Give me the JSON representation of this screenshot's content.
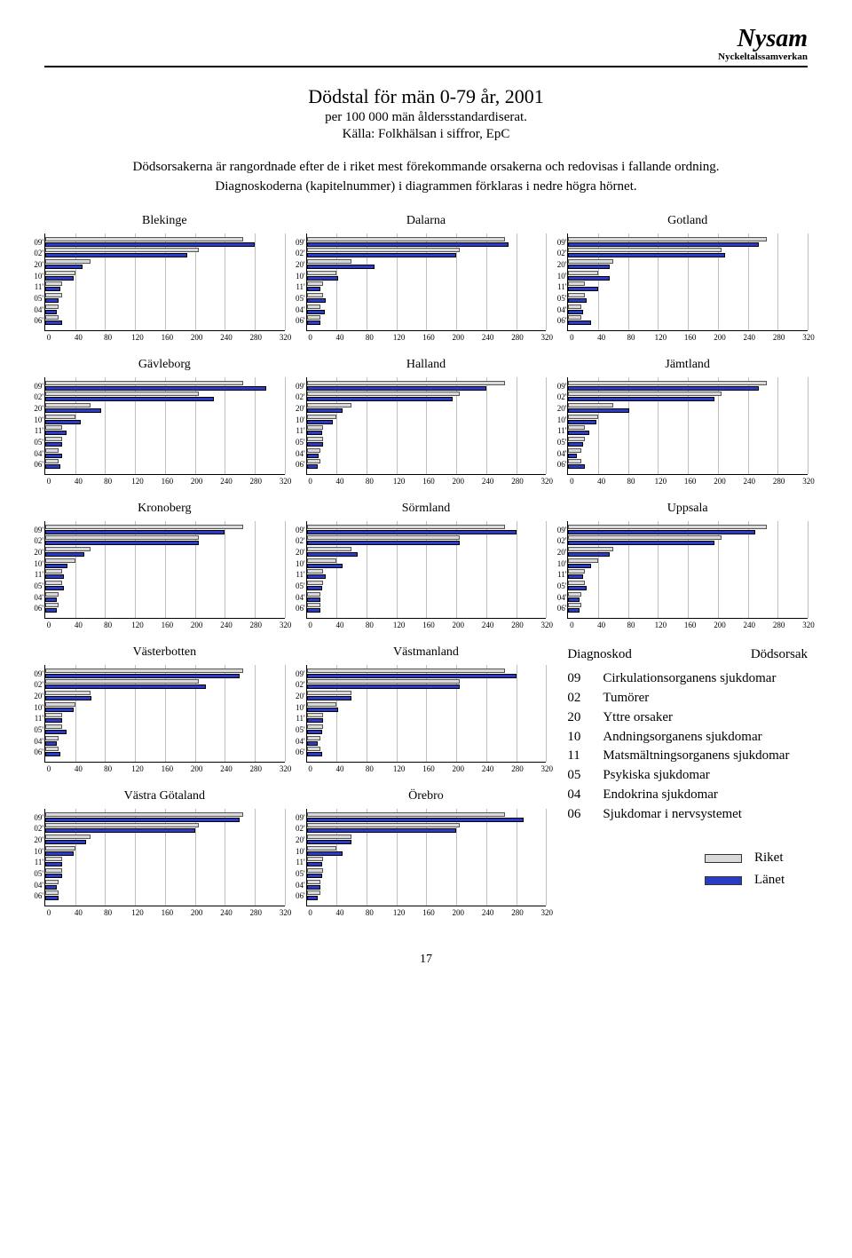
{
  "brand": {
    "title": "Nysam",
    "subtitle": "Nyckeltalssamverkan"
  },
  "title": "Dödstal för män 0-79 år, 2001",
  "subtitle": "per 100 000 män åldersstandardiserat.",
  "source": "Källa: Folkhälsan i siffror, EpC",
  "description1": "Dödsorsakerna är rangordnade efter de i riket mest förekommande orsakerna och redovisas i fallande ordning.",
  "description2": "Diagnoskoderna (kapitelnummer) i diagrammen förklaras i nedre högra hörnet.",
  "axis": {
    "xmin": 0,
    "xmax": 320,
    "ticks": [
      0,
      40,
      80,
      120,
      160,
      200,
      240,
      280,
      320
    ],
    "grid_color": "#bfbfbf"
  },
  "categories": [
    "09'",
    "02'",
    "20'",
    "10'",
    "11'",
    "05'",
    "04'",
    "06'"
  ],
  "colors": {
    "riket": "#d9d9d9",
    "lanet": "#2a3cc4",
    "riket_border": "#555555",
    "lanet_border": "#000000",
    "background": "#ffffff",
    "axis": "#000000"
  },
  "riket_values": [
    265,
    205,
    60,
    40,
    22,
    22,
    18,
    18
  ],
  "charts": [
    {
      "title": "Blekinge",
      "lanet": [
        280,
        190,
        50,
        38,
        20,
        18,
        15,
        22
      ]
    },
    {
      "title": "Dalarna",
      "lanet": [
        270,
        200,
        90,
        42,
        18,
        25,
        24,
        18
      ]
    },
    {
      "title": "Gotland",
      "lanet": [
        255,
        210,
        55,
        55,
        40,
        25,
        20,
        30
      ]
    },
    {
      "title": "Gävleborg",
      "lanet": [
        295,
        225,
        75,
        48,
        28,
        22,
        22,
        20
      ]
    },
    {
      "title": "Halland",
      "lanet": [
        240,
        195,
        48,
        35,
        20,
        22,
        16,
        15
      ]
    },
    {
      "title": "Jämtland",
      "lanet": [
        255,
        195,
        82,
        38,
        28,
        20,
        12,
        22
      ]
    },
    {
      "title": "Kronoberg",
      "lanet": [
        240,
        205,
        52,
        30,
        25,
        25,
        15,
        15
      ]
    },
    {
      "title": "Sörmland",
      "lanet": [
        280,
        205,
        68,
        48,
        25,
        20,
        18,
        18
      ]
    },
    {
      "title": "Uppsala",
      "lanet": [
        250,
        195,
        55,
        30,
        20,
        25,
        15,
        15
      ]
    },
    {
      "title": "Västerbotten",
      "lanet": [
        260,
        215,
        62,
        38,
        22,
        28,
        15,
        20
      ]
    },
    {
      "title": "Västmanland",
      "lanet": [
        280,
        205,
        60,
        42,
        22,
        20,
        15,
        20
      ]
    },
    {
      "title": "Västra Götaland",
      "lanet": [
        260,
        200,
        55,
        38,
        22,
        22,
        16,
        18
      ]
    },
    {
      "title": "Örebro",
      "lanet": [
        290,
        200,
        60,
        48,
        20,
        20,
        18,
        15
      ]
    }
  ],
  "legend": {
    "head_code": "Diagnoskod",
    "head_text": "Dödsorsak",
    "items": [
      {
        "code": "09",
        "text": "Cirkulationsorganens sjukdomar"
      },
      {
        "code": "02",
        "text": "Tumörer"
      },
      {
        "code": "20",
        "text": "Yttre orsaker"
      },
      {
        "code": "10",
        "text": "Andningsorganens sjukdomar"
      },
      {
        "code": "11",
        "text": "Matsmältningsorganens sjukdomar"
      },
      {
        "code": "05",
        "text": "Psykiska sjukdomar"
      },
      {
        "code": "04",
        "text": "Endokrina sjukdomar"
      },
      {
        "code": "06",
        "text": "Sjukdomar i nervsystemet"
      }
    ]
  },
  "series_legend": {
    "riket": "Riket",
    "lanet": "Länet"
  },
  "page_number": "17"
}
